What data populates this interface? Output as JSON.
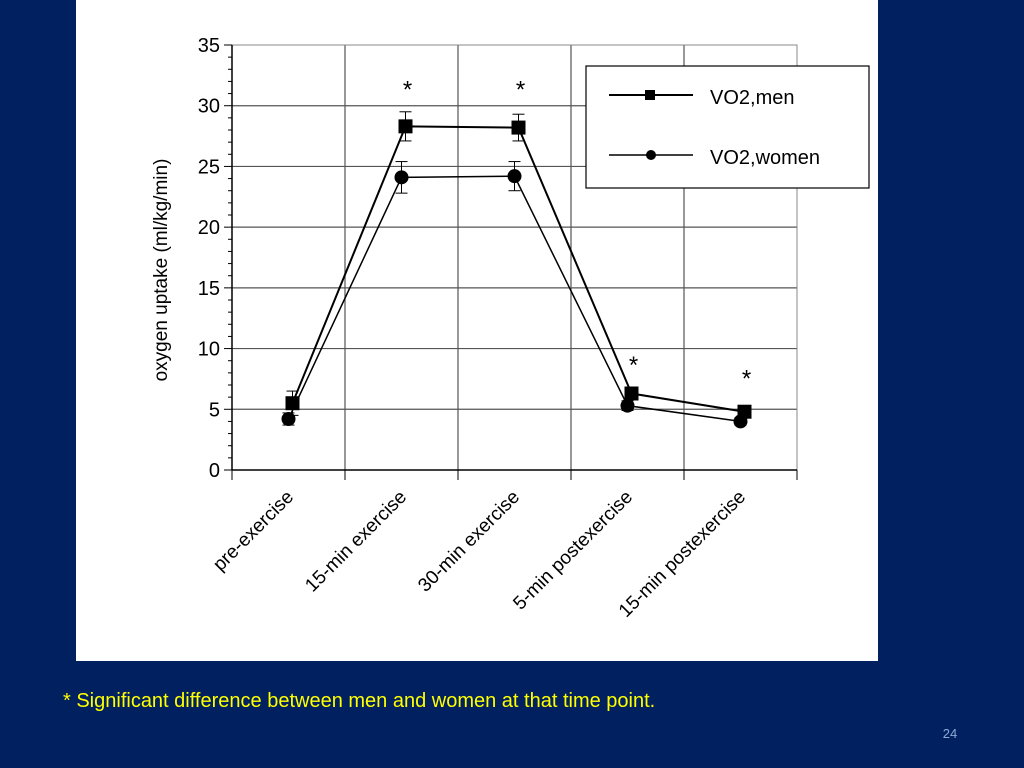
{
  "slide": {
    "footnote": "* Significant difference between men and women at that time point.",
    "page_number": "24",
    "background_color": "#002060",
    "footnote_color": "#ffff00"
  },
  "chart_data": {
    "type": "line",
    "title": "",
    "xlabel": "",
    "ylabel": "oxygen uptake (ml/kg/min)",
    "categories": [
      "pre-exercise",
      "15-min exercise",
      "30-min exercise",
      "5-min postexercise",
      "15-min postexercise"
    ],
    "ylim": [
      0,
      35
    ],
    "yticks": [
      0,
      5,
      10,
      15,
      20,
      25,
      30,
      35
    ],
    "grid": true,
    "legend_position": "top-right",
    "series": [
      {
        "name": "VO2,men",
        "marker": "square",
        "values": [
          5.5,
          28.3,
          28.2,
          6.3,
          4.8
        ],
        "error": [
          1.0,
          1.2,
          1.1,
          0.3,
          0.3
        ]
      },
      {
        "name": "VO2,women",
        "marker": "circle",
        "values": [
          4.2,
          24.1,
          24.2,
          5.3,
          4.0
        ],
        "error": [
          0.5,
          1.3,
          1.2,
          0.4,
          0.3
        ]
      }
    ],
    "significance_marker": "*",
    "significant_categories": [
      "15-min exercise",
      "30-min exercise",
      "5-min postexercise",
      "15-min postexercise"
    ]
  }
}
